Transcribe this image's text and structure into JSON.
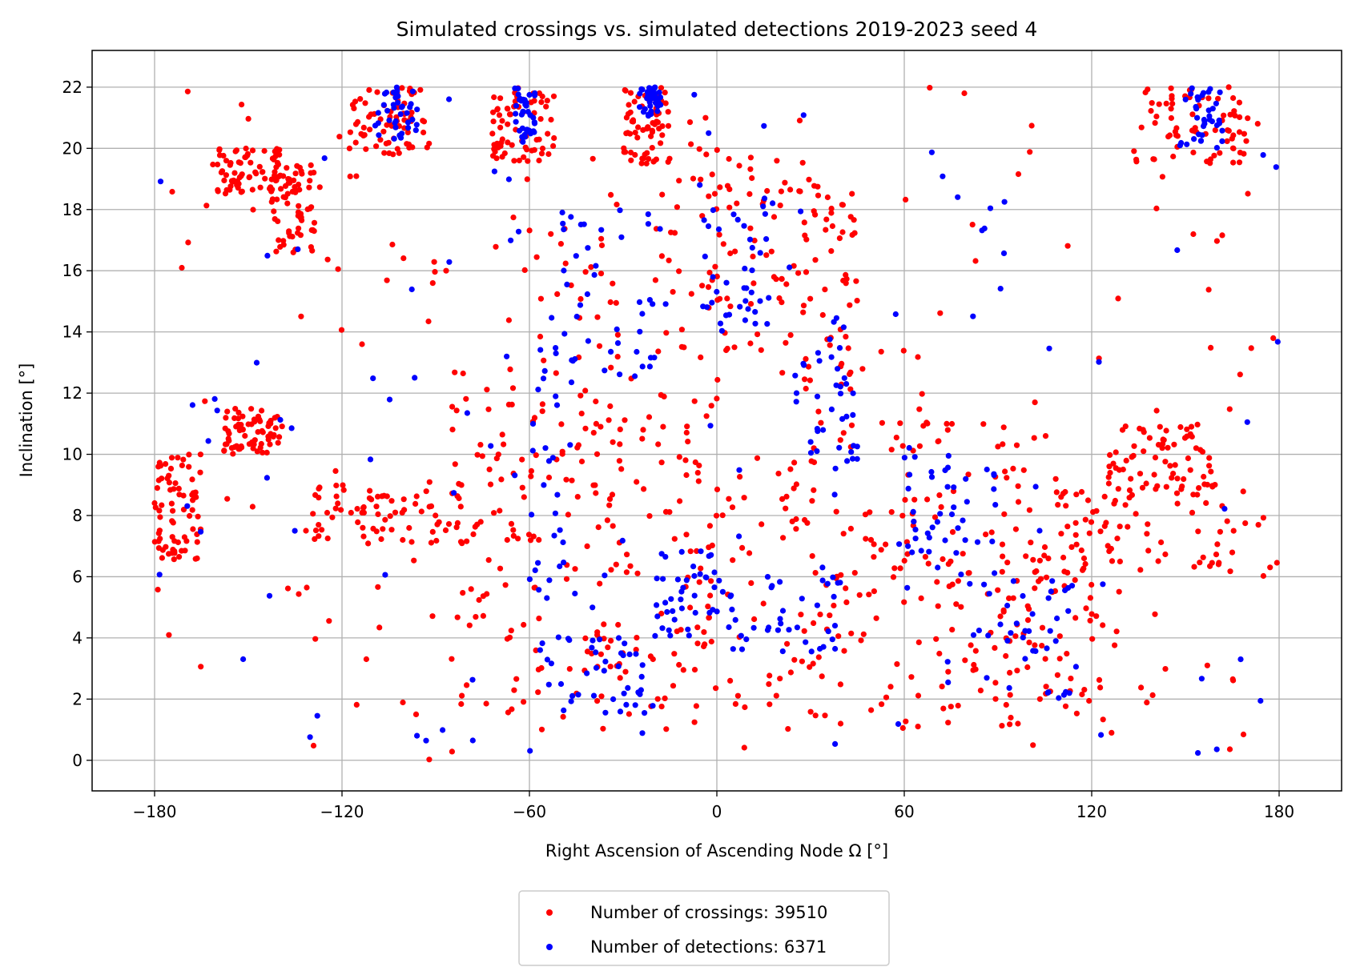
{
  "chart_data": {
    "type": "scatter",
    "title": "Simulated crossings vs. simulated detections 2019-2023 seed 4",
    "xlabel": "Right Ascension of Ascending Node Ω [°]",
    "ylabel": "Inclination [°]",
    "xlim": [
      -200,
      200
    ],
    "ylim": [
      -1,
      23.2
    ],
    "xticks": [
      -180,
      -120,
      -60,
      0,
      60,
      120,
      180
    ],
    "yticks": [
      0,
      2,
      4,
      6,
      8,
      10,
      12,
      14,
      16,
      18,
      20,
      22
    ],
    "xtick_labels": [
      "−180",
      "−120",
      "−60",
      "0",
      "60",
      "120",
      "180"
    ],
    "ytick_labels": [
      "0",
      "2",
      "4",
      "6",
      "8",
      "10",
      "12",
      "14",
      "16",
      "18",
      "20",
      "22"
    ],
    "grid": true,
    "legend_position": "below the plot, centered",
    "series": [
      {
        "name": "Number of crossings: 39510",
        "color": "#ff0000",
        "clusters": [
          {
            "x": [
              -118,
              -92
            ],
            "y": [
              19.8,
              22
            ]
          },
          {
            "x": [
              -72,
              -52
            ],
            "y": [
              19.5,
              22
            ]
          },
          {
            "x": [
              -30,
              -15
            ],
            "y": [
              19.5,
              22
            ]
          },
          {
            "x": [
              133,
              170
            ],
            "y": [
              19.5,
              22
            ]
          },
          {
            "x": [
              -160,
              -140
            ],
            "y": [
              18.5,
              20
            ]
          },
          {
            "x": [
              -143,
              -128
            ],
            "y": [
              16.5,
              19.5
            ]
          },
          {
            "x": [
              -158,
              -140
            ],
            "y": [
              10,
              11.5
            ]
          },
          {
            "x": [
              -180,
              -165
            ],
            "y": [
              6.5,
              10
            ]
          },
          {
            "x": [
              -130,
              -80
            ],
            "y": [
              7,
              9
            ]
          },
          {
            "x": [
              -85,
              -55
            ],
            "y": [
              1.5,
              13
            ]
          },
          {
            "x": [
              -60,
              -30
            ],
            "y": [
              1,
              18
            ]
          },
          {
            "x": [
              -40,
              0
            ],
            "y": [
              1,
              12
            ]
          },
          {
            "x": [
              -20,
              20
            ],
            "y": [
              13,
              20
            ]
          },
          {
            "x": [
              20,
              45
            ],
            "y": [
              12,
              19
            ]
          },
          {
            "x": [
              -20,
              40
            ],
            "y": [
              1,
              10
            ]
          },
          {
            "x": [
              30,
              75
            ],
            "y": [
              1,
              12
            ]
          },
          {
            "x": [
              60,
              110
            ],
            "y": [
              2,
              11
            ]
          },
          {
            "x": [
              90,
              125
            ],
            "y": [
              1,
              9
            ]
          },
          {
            "x": [
              125,
              160
            ],
            "y": [
              8.8,
              11
            ]
          },
          {
            "x": [
              110,
              180
            ],
            "y": [
              6,
              9
            ]
          },
          {
            "x": [
              -180,
              180
            ],
            "y": [
              0,
              22
            ]
          }
        ]
      },
      {
        "name": "Number of detections: 6371",
        "color": "#0000ff",
        "clusters": [
          {
            "x": [
              -110,
              -95
            ],
            "y": [
              20.2,
              22
            ]
          },
          {
            "x": [
              -65,
              -58
            ],
            "y": [
              20.2,
              22
            ]
          },
          {
            "x": [
              -25,
              -18
            ],
            "y": [
              21,
              22
            ]
          },
          {
            "x": [
              148,
              162
            ],
            "y": [
              20,
              22
            ]
          },
          {
            "x": [
              -60,
              -45
            ],
            "y": [
              2,
              14
            ]
          },
          {
            "x": [
              -50,
              -20
            ],
            "y": [
              1.5,
              4
            ]
          },
          {
            "x": [
              -50,
              -20
            ],
            "y": [
              12,
              18
            ]
          },
          {
            "x": [
              -5,
              18
            ],
            "y": [
              14,
              18.5
            ]
          },
          {
            "x": [
              -20,
              0
            ],
            "y": [
              4,
              7
            ]
          },
          {
            "x": [
              0,
              40
            ],
            "y": [
              3.5,
              6
            ]
          },
          {
            "x": [
              25,
              45
            ],
            "y": [
              9.5,
              15
            ]
          },
          {
            "x": [
              60,
              90
            ],
            "y": [
              6,
              10
            ]
          },
          {
            "x": [
              80,
              115
            ],
            "y": [
              2,
              6
            ]
          },
          {
            "x": [
              -180,
              180
            ],
            "y": [
              0,
              22
            ]
          }
        ]
      }
    ]
  },
  "legend": {
    "crossings_label": "Number of crossings: 39510",
    "detections_label": "Number of detections: 6371"
  }
}
